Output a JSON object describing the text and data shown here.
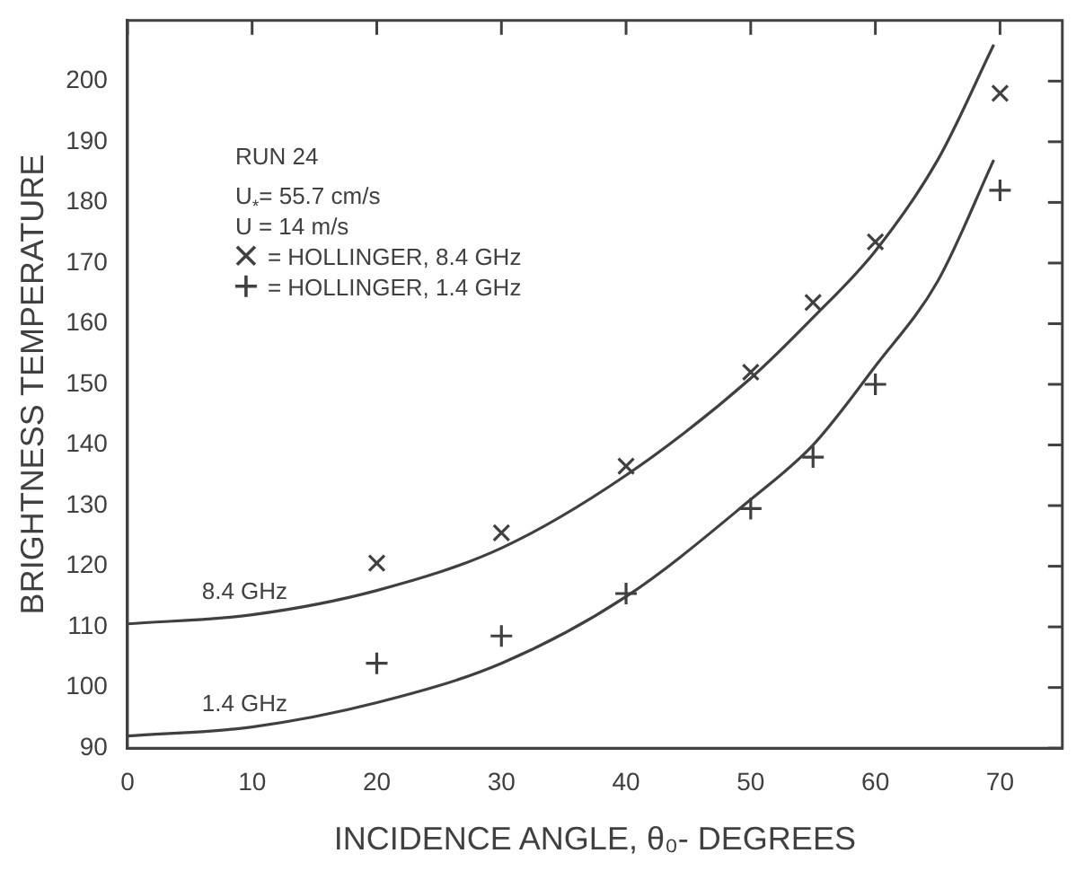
{
  "chart_data": {
    "type": "line",
    "xlabel": "INCIDENCE ANGLE, θ₀- DEGREES",
    "ylabel": "BRIGHTNESS TEMPERATURE",
    "xlim": [
      0,
      75
    ],
    "ylim": [
      90,
      210
    ],
    "xticks": [
      0,
      10,
      20,
      30,
      40,
      50,
      60,
      70
    ],
    "yticks": [
      90,
      100,
      110,
      120,
      130,
      140,
      150,
      160,
      170,
      180,
      190,
      200
    ],
    "grid": false,
    "legend": "top left",
    "marker": "none",
    "line_style": "solid",
    "annotations": [
      "RUN 24",
      "U$_{*}$= 55.7 cm/s",
      "U = 14 m/s"
    ],
    "series": [
      {
        "name": "8.4 GHz",
        "color": "#404040",
        "x": [
          0,
          10,
          20,
          30,
          40,
          50,
          55,
          60,
          65,
          69.5
        ],
        "values": [
          110.5,
          112,
          116,
          123,
          135,
          151,
          161,
          172,
          187,
          206
        ]
      },
      {
        "name": "1.4 GHz",
        "color": "#404040",
        "x": [
          0,
          10,
          20,
          30,
          40,
          50,
          55,
          60,
          65,
          69.5
        ],
        "values": [
          92,
          93.5,
          97.5,
          104,
          115,
          131,
          140,
          153,
          167,
          187
        ]
      },
      {
        "name": "= HOLLINGER, 8.4 GHz",
        "type": "scatter",
        "marker": "x",
        "color": "#404040",
        "x": [
          20,
          30,
          40,
          50,
          55,
          60,
          70
        ],
        "values": [
          120.5,
          125.5,
          136.5,
          152,
          163.5,
          173.5,
          198
        ]
      },
      {
        "name": "= HOLLINGER, 1.4 GHz",
        "type": "scatter",
        "marker": "cross",
        "color": "#404040",
        "x": [
          20,
          30,
          40,
          50,
          55,
          60,
          70
        ],
        "values": [
          104,
          108.5,
          115.5,
          129.5,
          138,
          150,
          182
        ]
      }
    ]
  }
}
